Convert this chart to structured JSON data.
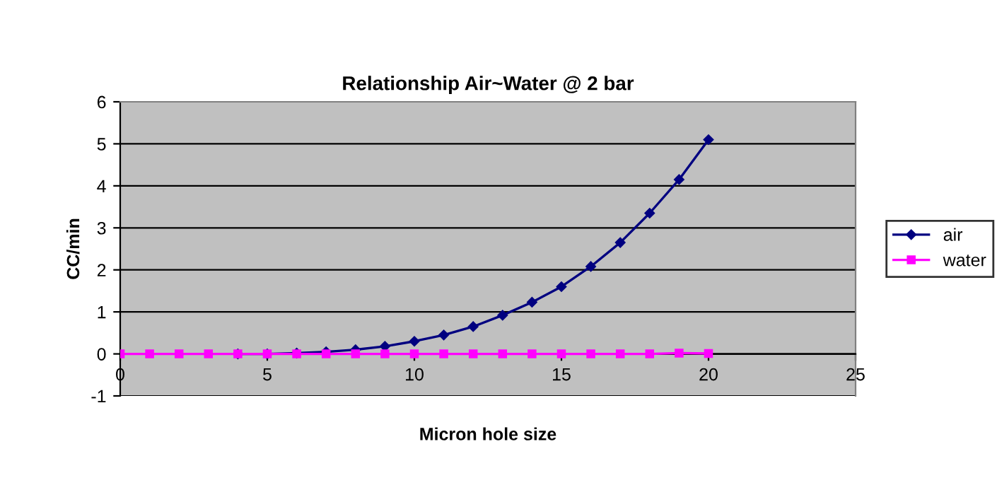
{
  "chart_data": {
    "type": "line",
    "title": "Relationship Air~Water @ 2 bar",
    "xlabel": "Micron hole size",
    "ylabel": "CC/min",
    "xlim": [
      0,
      25
    ],
    "xticks": [
      0,
      5,
      10,
      15,
      20,
      25
    ],
    "ylim": [
      -1,
      6
    ],
    "yticks": [
      -1,
      0,
      1,
      2,
      3,
      4,
      5,
      6
    ],
    "grid": "y",
    "legend": "right",
    "series": [
      {
        "name": "air",
        "color": "#000080",
        "marker": "diamond",
        "x": [
          4,
          5,
          6,
          7,
          8,
          9,
          10,
          11,
          12,
          13,
          14,
          15,
          16,
          17,
          18,
          19,
          20
        ],
        "values": [
          0,
          0,
          0.02,
          0.05,
          0.1,
          0.18,
          0.3,
          0.45,
          0.65,
          0.92,
          1.23,
          1.6,
          2.08,
          2.65,
          3.35,
          4.15,
          5.1
        ]
      },
      {
        "name": "water",
        "color": "#ff00ff",
        "marker": "square",
        "x": [
          0,
          1,
          2,
          3,
          4,
          5,
          6,
          7,
          8,
          9,
          10,
          11,
          12,
          13,
          14,
          15,
          16,
          17,
          18,
          19,
          20
        ],
        "values": [
          0,
          0,
          0,
          0,
          0,
          0,
          0,
          0,
          0,
          0,
          0,
          0,
          0,
          0,
          0,
          0,
          0,
          0,
          0,
          0.02,
          0.01
        ]
      }
    ]
  }
}
